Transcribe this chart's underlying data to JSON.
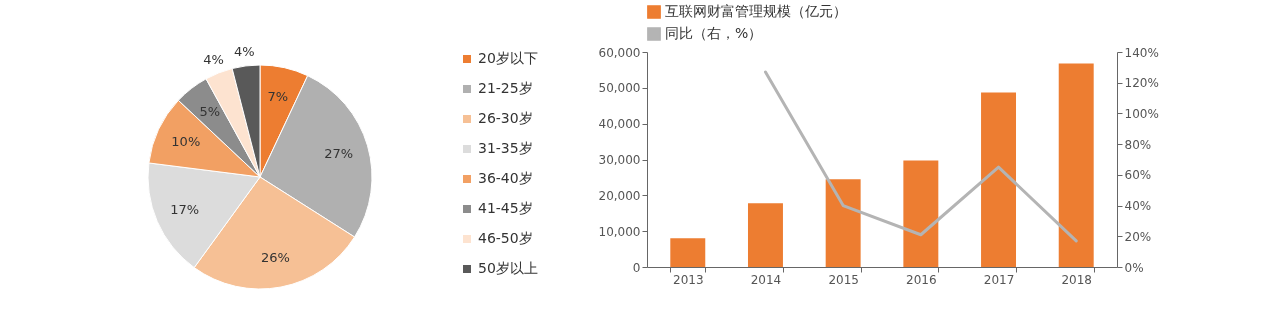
{
  "chart_data": [
    {
      "type": "pie",
      "categories": [
        "20岁以下",
        "21-25岁",
        "26-30岁",
        "31-35岁",
        "36-40岁",
        "41-45岁",
        "46-50岁",
        "50岁以上"
      ],
      "values": [
        7,
        27,
        26,
        17,
        10,
        5,
        4,
        4
      ],
      "value_labels": [
        "7%",
        "27%",
        "26%",
        "17%",
        "10%",
        "5%",
        "4%",
        "4%"
      ],
      "colors": [
        "#ed7d31",
        "#b0b0b0",
        "#f6c095",
        "#dcdcdc",
        "#f2a063",
        "#8c8c8c",
        "#fde3d0",
        "#595959"
      ],
      "legend": "right"
    },
    {
      "type": "bar",
      "categories": [
        "2013",
        "2014",
        "2015",
        "2016",
        "2017",
        "2018"
      ],
      "series": [
        {
          "name": "互联网财富管理规模（亿元）",
          "color": "#ed7d31",
          "type": "bar",
          "values": [
            8000,
            17800,
            24500,
            29700,
            48700,
            56800
          ]
        },
        {
          "name": "同比（右，%）",
          "color": "#b4b4b4",
          "type": "line",
          "axis": "y2",
          "values": [
            null,
            127,
            40,
            21,
            65,
            17
          ]
        }
      ],
      "ylim": [
        0,
        60000
      ],
      "yticks": [
        {
          "value": 0,
          "label": "0"
        },
        {
          "value": 10000,
          "label": "10,000"
        },
        {
          "value": 20000,
          "label": "20,000"
        },
        {
          "value": 30000,
          "label": "30,000"
        },
        {
          "value": 40000,
          "label": "40,000"
        },
        {
          "value": 50000,
          "label": "50,000"
        },
        {
          "value": 60000,
          "label": "60,000"
        }
      ],
      "y2lim": [
        0,
        140
      ],
      "y2ticks": [
        {
          "value": 0,
          "label": "0%"
        },
        {
          "value": 20,
          "label": "20%"
        },
        {
          "value": 40,
          "label": "40%"
        },
        {
          "value": 60,
          "label": "60%"
        },
        {
          "value": 80,
          "label": "80%"
        },
        {
          "value": 100,
          "label": "100%"
        },
        {
          "value": 120,
          "label": "120%"
        },
        {
          "value": 140,
          "label": "140%"
        }
      ],
      "grid": false,
      "legend": "top"
    }
  ]
}
